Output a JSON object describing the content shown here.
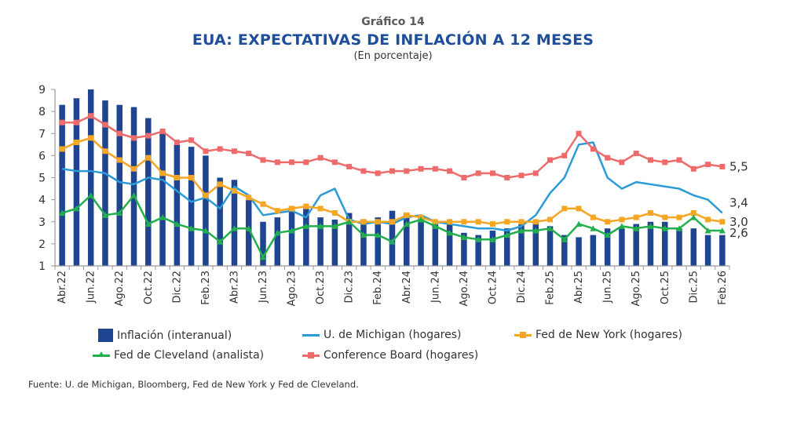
{
  "header": {
    "number": "Gráfico 14",
    "title": "EUA: EXPECTATIVAS DE INFLACIÓN A 12 MESES",
    "subtitle": "(En porcentaje)"
  },
  "source": "Fuente: U. de Michigan, Bloomberg, Fed de New York y Fed de Cleveland.",
  "chart_data": {
    "type": "bar+line",
    "title": "EUA: EXPECTATIVAS DE INFLACIÓN A 12 MESES",
    "subtitle": "(En porcentaje)",
    "xlabel": "",
    "ylabel": "",
    "ylim": [
      1,
      9
    ],
    "yticks": [
      1,
      2,
      3,
      4,
      5,
      6,
      7,
      8,
      9
    ],
    "grid": false,
    "legend_position": "bottom",
    "x": [
      "Abr.22",
      "May.22",
      "Jun.22",
      "Jul.22",
      "Ago.22",
      "Sep.22",
      "Oct.22",
      "Nov.22",
      "Dic.22",
      "Ene.23",
      "Feb.23",
      "Mar.23",
      "Abr.23",
      "May.23",
      "Jun.23",
      "Jul.23",
      "Ago.23",
      "Sep.23",
      "Oct.23",
      "Nov.23",
      "Dic.23",
      "Ene.24",
      "Feb.24",
      "Mar.24",
      "Abr.24",
      "May.24",
      "Jun.24",
      "Jul.24",
      "Ago.24",
      "Sep.24",
      "Oct.24",
      "Nov.24",
      "Dic.24",
      "Ene.25",
      "Feb.25",
      "Mar.25",
      "Abr.25",
      "May.25",
      "Jun.25",
      "Jul.25",
      "Ago.25",
      "Sep.25",
      "Oct.25",
      "Nov.25",
      "Dic.25",
      "Ene.26",
      "Feb.26"
    ],
    "xtick_labels": [
      "Abr.22",
      "Jun.22",
      "Ago.22",
      "Oct.22",
      "Dic.22",
      "Feb.23",
      "Abr.23",
      "Jun.23",
      "Ago.23",
      "Oct.23",
      "Dic.23",
      "Feb.24",
      "Abr.24",
      "Jun.24",
      "Ago.24",
      "Oct.24",
      "Dic.24",
      "Feb.25",
      "Abr.25",
      "Jun.25",
      "Ago.25",
      "Oct.25",
      "Dic.25",
      "Feb.26"
    ],
    "series": [
      {
        "name": "Inflación (interanual)",
        "kind": "bar",
        "color": "#1f4591",
        "values": [
          8.3,
          8.6,
          9.0,
          8.5,
          8.3,
          8.2,
          7.7,
          7.1,
          6.5,
          6.4,
          6.0,
          5.0,
          4.9,
          4.0,
          3.0,
          3.2,
          3.7,
          3.7,
          3.2,
          3.1,
          3.4,
          3.1,
          3.2,
          3.5,
          3.4,
          3.3,
          3.0,
          2.9,
          2.5,
          2.4,
          2.6,
          2.7,
          2.9,
          3.0,
          2.8,
          2.4,
          2.3,
          2.4,
          2.7,
          2.7,
          2.9,
          3.0,
          3.0,
          2.7,
          2.7,
          2.4,
          2.4
        ]
      },
      {
        "name": "U. de Michigan (hogares)",
        "kind": "line",
        "color": "#2b9bd8",
        "marker": "none",
        "values": [
          5.4,
          5.3,
          5.3,
          5.2,
          4.8,
          4.7,
          5.0,
          4.9,
          4.4,
          3.9,
          4.1,
          3.6,
          4.6,
          4.2,
          3.3,
          3.4,
          3.5,
          3.2,
          4.2,
          4.5,
          3.1,
          2.9,
          3.0,
          2.9,
          3.2,
          3.3,
          3.0,
          2.9,
          2.8,
          2.7,
          2.7,
          2.6,
          2.8,
          3.3,
          4.3,
          5.0,
          6.5,
          6.6,
          5.0,
          4.5,
          4.8,
          4.7,
          4.6,
          4.5,
          4.2,
          4.0,
          3.4
        ],
        "end_label": "3,4"
      },
      {
        "name": "Fed de New York (hogares)",
        "kind": "line",
        "color": "#f5a623",
        "marker": "square",
        "values": [
          6.3,
          6.6,
          6.8,
          6.2,
          5.8,
          5.4,
          5.9,
          5.2,
          5.0,
          5.0,
          4.2,
          4.7,
          4.4,
          4.1,
          3.8,
          3.5,
          3.6,
          3.7,
          3.6,
          3.4,
          3.0,
          3.0,
          3.0,
          3.0,
          3.3,
          3.2,
          3.0,
          3.0,
          3.0,
          3.0,
          2.9,
          3.0,
          3.0,
          3.0,
          3.1,
          3.6,
          3.6,
          3.2,
          3.0,
          3.1,
          3.2,
          3.4,
          3.2,
          3.2,
          3.4,
          3.1,
          3.0
        ],
        "end_label": "3,0"
      },
      {
        "name": "Fed de Cleveland (analista)",
        "kind": "line",
        "color": "#21b04b",
        "marker": "triangle",
        "values": [
          3.4,
          3.6,
          4.2,
          3.3,
          3.4,
          4.2,
          2.9,
          3.2,
          2.9,
          2.7,
          2.6,
          2.1,
          2.7,
          2.7,
          1.4,
          2.5,
          2.6,
          2.8,
          2.8,
          2.8,
          3.0,
          2.4,
          2.4,
          2.1,
          2.9,
          3.1,
          2.8,
          2.5,
          2.3,
          2.2,
          2.2,
          2.4,
          2.6,
          2.6,
          2.7,
          2.2,
          2.9,
          2.7,
          2.4,
          2.8,
          2.7,
          2.8,
          2.7,
          2.7,
          3.2,
          2.6,
          2.6
        ],
        "end_label": "2,6"
      },
      {
        "name": "Conference Board (hogares)",
        "kind": "line",
        "color": "#ee6b6b",
        "marker": "square",
        "values": [
          7.5,
          7.5,
          7.8,
          7.4,
          7.0,
          6.8,
          6.9,
          7.1,
          6.6,
          6.7,
          6.2,
          6.3,
          6.2,
          6.1,
          5.8,
          5.7,
          5.7,
          5.7,
          5.9,
          5.7,
          5.5,
          5.3,
          5.2,
          5.3,
          5.3,
          5.4,
          5.4,
          5.3,
          5.0,
          5.2,
          5.2,
          5.0,
          5.1,
          5.2,
          5.8,
          6.0,
          7.0,
          6.3,
          5.9,
          5.7,
          6.1,
          5.8,
          5.7,
          5.8,
          5.4,
          5.6,
          5.5
        ],
        "end_label": "5,5"
      }
    ]
  }
}
